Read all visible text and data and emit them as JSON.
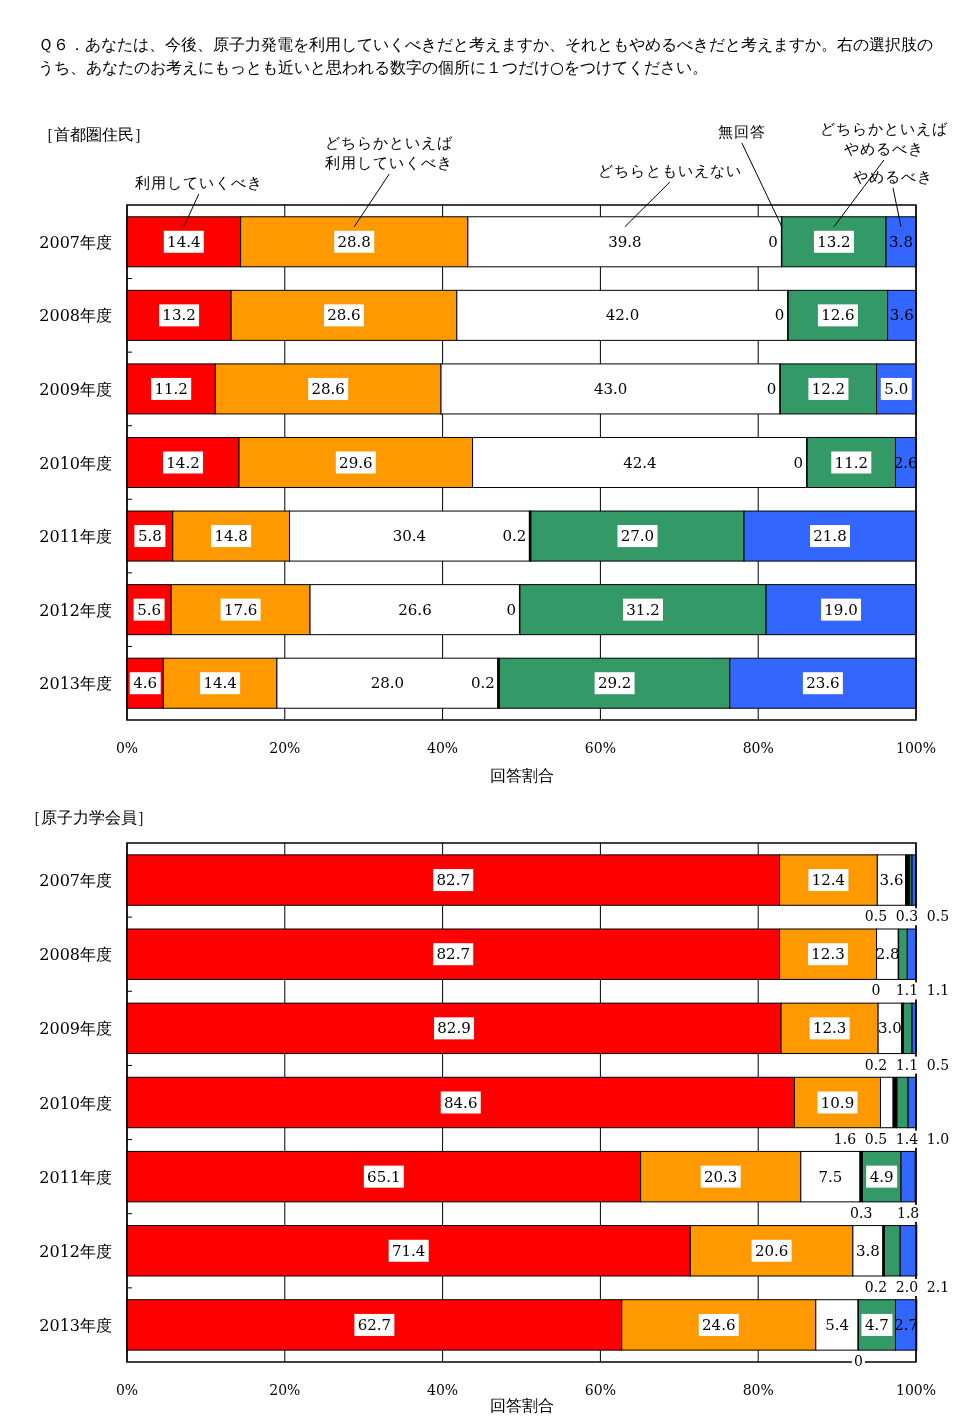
{
  "chart_data": [
    {
      "type": "bar",
      "orientation": "horizontal",
      "stacked": true,
      "grid": "x",
      "title": "Ｑ６．あなたは、今後、原子力発電を利用していくべきだと考えますか、それともやめるべきだと考えますか。右の選択肢のうち、あなたのお考えにもっとも近いと思われる数字の個所に１つだけ○をつけてください。",
      "subtitle": "［首都圏住民］",
      "xlabel": "回答割合",
      "categories": [
        "2007年度",
        "2008年度",
        "2009年度",
        "2010年度",
        "2011年度",
        "2012年度",
        "2013年度"
      ],
      "xlim": [
        0,
        100
      ],
      "xticks": [
        {
          "value": 0,
          "label": "0%"
        },
        {
          "value": 20,
          "label": "20%"
        },
        {
          "value": 40,
          "label": "40%"
        },
        {
          "value": 60,
          "label": "60%"
        },
        {
          "value": 80,
          "label": "80%"
        },
        {
          "value": 100,
          "label": "100%"
        }
      ],
      "series": [
        {
          "name": "利用していくべき",
          "color": "#ff0000",
          "values": [
            14.4,
            13.2,
            11.2,
            14.2,
            5.8,
            5.6,
            4.6
          ],
          "value_labels": [
            "14.4",
            "13.2",
            "11.2",
            "14.2",
            "5.8",
            "5.6",
            "4.6"
          ]
        },
        {
          "name": "どちらかといえば利用していくべき",
          "color": "#ff9900",
          "values": [
            28.8,
            28.6,
            28.6,
            29.6,
            14.8,
            17.6,
            14.4
          ],
          "value_labels": [
            "28.8",
            "28.6",
            "28.6",
            "29.6",
            "14.8",
            "17.6",
            "14.4"
          ]
        },
        {
          "name": "どちらともいえない",
          "color": "#ffffff",
          "values": [
            39.8,
            42.0,
            43.0,
            42.4,
            30.4,
            26.6,
            28.0
          ],
          "value_labels": [
            "39.8",
            "42.0",
            "43.0",
            "42.4",
            "30.4",
            "26.6",
            "28.0"
          ]
        },
        {
          "name": "無回答",
          "color": "#000000",
          "values": [
            0,
            0,
            0,
            0,
            0.2,
            0,
            0.2
          ],
          "value_labels": [
            "0",
            "0",
            "0",
            "0",
            "0.2",
            "0",
            "0.2"
          ]
        },
        {
          "name": "どちらかといえばやめるべき",
          "color": "#339966",
          "values": [
            13.2,
            12.6,
            12.2,
            11.2,
            27.0,
            31.2,
            29.2
          ],
          "value_labels": [
            "13.2",
            "12.6",
            "12.2",
            "11.2",
            "27.0",
            "31.2",
            "29.2"
          ]
        },
        {
          "name": "やめるべき",
          "color": "#3366ff",
          "values": [
            3.8,
            3.6,
            5.0,
            2.6,
            21.8,
            19.0,
            23.6
          ],
          "value_labels": [
            "3.8",
            "3.6",
            "5.0",
            "2.6",
            "21.8",
            "19.0",
            "23.6"
          ]
        }
      ]
    },
    {
      "type": "bar",
      "orientation": "horizontal",
      "stacked": true,
      "grid": "x",
      "title": "［原子力学会員］",
      "xlabel": "回答割合",
      "categories": [
        "2007年度",
        "2008年度",
        "2009年度",
        "2010年度",
        "2011年度",
        "2012年度",
        "2013年度"
      ],
      "xlim": [
        0,
        100
      ],
      "xticks": [
        {
          "value": 0,
          "label": "0%"
        },
        {
          "value": 20,
          "label": "20%"
        },
        {
          "value": 40,
          "label": "40%"
        },
        {
          "value": 60,
          "label": "60%"
        },
        {
          "value": 80,
          "label": "80%"
        },
        {
          "value": 100,
          "label": "100%"
        }
      ],
      "series": [
        {
          "color": "#ff0000",
          "values": [
            82.7,
            82.7,
            82.9,
            84.6,
            65.1,
            71.4,
            62.7
          ],
          "value_labels": [
            "82.7",
            "82.7",
            "82.9",
            "84.6",
            "65.1",
            "71.4",
            "62.7"
          ]
        },
        {
          "color": "#ff9900",
          "values": [
            12.4,
            12.3,
            12.3,
            10.9,
            20.3,
            20.6,
            24.6
          ],
          "value_labels": [
            "12.4",
            "12.3",
            "12.3",
            "10.9",
            "20.3",
            "20.6",
            "24.6"
          ]
        },
        {
          "color": "#ffffff",
          "values": [
            3.6,
            2.8,
            3.0,
            1.6,
            7.5,
            3.8,
            5.4
          ],
          "value_labels": [
            "3.6",
            "2.8",
            "3.0",
            "1.6",
            "7.5",
            "3.8",
            "5.4"
          ]
        },
        {
          "color": "#000000",
          "values": [
            0.5,
            0,
            0.2,
            0.5,
            0.3,
            0.2,
            0
          ],
          "value_labels": [
            "0.5",
            "0",
            "0.2",
            "0.5",
            "0.3",
            "0.2",
            "0"
          ]
        },
        {
          "color": "#339966",
          "values": [
            0.3,
            1.1,
            1.1,
            1.4,
            4.9,
            2.0,
            4.7
          ],
          "value_labels": [
            "0.3",
            "1.1",
            "1.1",
            "1.4",
            "4.9",
            "2.0",
            "4.7"
          ]
        },
        {
          "color": "#3366ff",
          "values": [
            0.5,
            1.1,
            0.5,
            1.0,
            1.8,
            2.1,
            2.7
          ],
          "value_labels": [
            "0.5",
            "1.1",
            "0.5",
            "1.0",
            "1.8",
            "2.1",
            "2.7"
          ]
        }
      ]
    }
  ]
}
